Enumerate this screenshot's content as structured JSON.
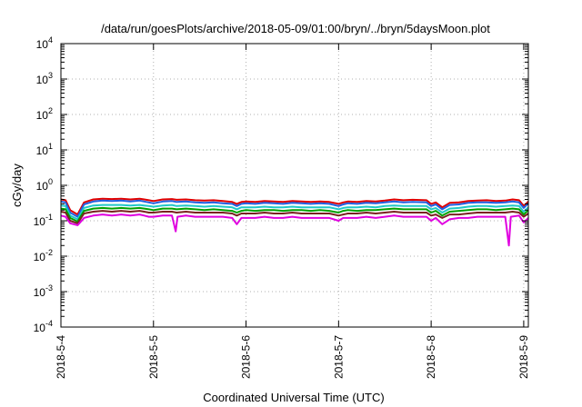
{
  "chart_data": {
    "type": "line",
    "title": "/data/run/goesPlots/archive/2018-05-09/01:00/bryn/../bryn/5daysMoon.plot",
    "xlabel": "Coordinated Universal Time (UTC)",
    "ylabel": "cGy/day",
    "yscale": "log",
    "ylim": [
      0.0001,
      10000
    ],
    "xlim": [
      0,
      5.05
    ],
    "grid": true,
    "x_ticks": [
      {
        "value": 0,
        "label": "2018-5-4"
      },
      {
        "value": 1,
        "label": "2018-5-5"
      },
      {
        "value": 2,
        "label": "2018-5-6"
      },
      {
        "value": 3,
        "label": "2018-5-7"
      },
      {
        "value": 4,
        "label": "2018-5-8"
      },
      {
        "value": 5,
        "label": "2018-5-9"
      }
    ],
    "y_ticks": [
      {
        "value": 0.0001,
        "base": "10",
        "exp": "-4"
      },
      {
        "value": 0.001,
        "base": "10",
        "exp": "-3"
      },
      {
        "value": 0.01,
        "base": "10",
        "exp": "-2"
      },
      {
        "value": 0.1,
        "base": "10",
        "exp": "-1"
      },
      {
        "value": 1,
        "base": "10",
        "exp": "0"
      },
      {
        "value": 10,
        "base": "10",
        "exp": "1"
      },
      {
        "value": 100,
        "base": "10",
        "exp": "2"
      },
      {
        "value": 1000,
        "base": "10",
        "exp": "3"
      },
      {
        "value": 10000,
        "base": "10",
        "exp": "4"
      }
    ],
    "series": [
      {
        "color": "#e00000",
        "x": [
          0,
          0.05,
          0.1,
          0.18,
          0.25,
          0.35,
          0.45,
          0.55,
          0.65,
          0.75,
          0.85,
          0.9,
          0.95,
          1.0,
          1.1,
          1.2,
          1.25,
          1.35,
          1.45,
          1.55,
          1.65,
          1.75,
          1.85,
          1.9,
          1.95,
          2.0,
          2.1,
          2.2,
          2.3,
          2.4,
          2.5,
          2.6,
          2.7,
          2.8,
          2.9,
          3.0,
          3.05,
          3.1,
          3.2,
          3.3,
          3.4,
          3.5,
          3.6,
          3.7,
          3.8,
          3.95,
          4.0,
          4.05,
          4.12,
          4.2,
          4.3,
          4.4,
          4.5,
          4.6,
          4.7,
          4.8,
          4.88,
          4.95,
          5.0,
          5.05
        ],
        "values": [
          0.4,
          0.38,
          0.2,
          0.15,
          0.33,
          0.4,
          0.42,
          0.41,
          0.42,
          0.4,
          0.42,
          0.4,
          0.38,
          0.36,
          0.4,
          0.41,
          0.39,
          0.4,
          0.38,
          0.37,
          0.38,
          0.36,
          0.34,
          0.3,
          0.34,
          0.35,
          0.34,
          0.36,
          0.35,
          0.34,
          0.36,
          0.35,
          0.34,
          0.35,
          0.34,
          0.3,
          0.33,
          0.35,
          0.34,
          0.36,
          0.35,
          0.37,
          0.4,
          0.38,
          0.39,
          0.38,
          0.3,
          0.33,
          0.24,
          0.32,
          0.33,
          0.36,
          0.37,
          0.38,
          0.36,
          0.37,
          0.4,
          0.38,
          0.26,
          0.35
        ]
      },
      {
        "color": "#1f5fe0",
        "x": [
          0,
          0.05,
          0.1,
          0.18,
          0.25,
          0.35,
          0.45,
          0.55,
          0.65,
          0.75,
          0.85,
          0.9,
          0.95,
          1.0,
          1.1,
          1.2,
          1.25,
          1.35,
          1.45,
          1.55,
          1.65,
          1.75,
          1.85,
          1.9,
          1.95,
          2.0,
          2.1,
          2.2,
          2.3,
          2.4,
          2.5,
          2.6,
          2.7,
          2.8,
          2.9,
          3.0,
          3.05,
          3.1,
          3.2,
          3.3,
          3.4,
          3.5,
          3.6,
          3.7,
          3.8,
          3.95,
          4.0,
          4.05,
          4.12,
          4.2,
          4.3,
          4.4,
          4.5,
          4.6,
          4.7,
          4.8,
          4.88,
          4.95,
          5.0,
          5.05
        ],
        "values": [
          0.35,
          0.33,
          0.17,
          0.13,
          0.29,
          0.35,
          0.37,
          0.36,
          0.37,
          0.35,
          0.37,
          0.35,
          0.33,
          0.31,
          0.35,
          0.36,
          0.34,
          0.35,
          0.33,
          0.32,
          0.33,
          0.31,
          0.3,
          0.26,
          0.3,
          0.31,
          0.3,
          0.32,
          0.31,
          0.3,
          0.32,
          0.31,
          0.3,
          0.31,
          0.3,
          0.26,
          0.29,
          0.31,
          0.3,
          0.32,
          0.31,
          0.33,
          0.35,
          0.33,
          0.34,
          0.33,
          0.26,
          0.29,
          0.21,
          0.28,
          0.29,
          0.32,
          0.33,
          0.33,
          0.32,
          0.33,
          0.35,
          0.33,
          0.23,
          0.31
        ]
      },
      {
        "color": "#20c8c8",
        "x": [
          0,
          0.05,
          0.1,
          0.18,
          0.25,
          0.35,
          0.45,
          0.55,
          0.65,
          0.75,
          0.85,
          0.9,
          0.95,
          1.0,
          1.1,
          1.2,
          1.25,
          1.35,
          1.45,
          1.55,
          1.65,
          1.75,
          1.85,
          1.9,
          1.95,
          2.0,
          2.1,
          2.2,
          2.3,
          2.4,
          2.5,
          2.6,
          2.7,
          2.8,
          2.9,
          3.0,
          3.05,
          3.1,
          3.2,
          3.3,
          3.4,
          3.5,
          3.6,
          3.7,
          3.8,
          3.95,
          4.0,
          4.05,
          4.12,
          4.2,
          4.3,
          4.4,
          4.5,
          4.6,
          4.7,
          4.8,
          4.88,
          4.95,
          5.0,
          5.05
        ],
        "values": [
          0.27,
          0.26,
          0.14,
          0.11,
          0.23,
          0.27,
          0.28,
          0.28,
          0.28,
          0.27,
          0.28,
          0.27,
          0.26,
          0.25,
          0.27,
          0.28,
          0.26,
          0.27,
          0.26,
          0.25,
          0.26,
          0.25,
          0.24,
          0.21,
          0.24,
          0.24,
          0.24,
          0.25,
          0.24,
          0.24,
          0.25,
          0.24,
          0.24,
          0.24,
          0.24,
          0.21,
          0.23,
          0.24,
          0.24,
          0.25,
          0.24,
          0.26,
          0.27,
          0.26,
          0.26,
          0.26,
          0.21,
          0.23,
          0.17,
          0.22,
          0.23,
          0.25,
          0.26,
          0.26,
          0.25,
          0.26,
          0.27,
          0.26,
          0.18,
          0.24
        ]
      },
      {
        "color": "#00a000",
        "x": [
          0,
          0.05,
          0.1,
          0.18,
          0.25,
          0.35,
          0.45,
          0.55,
          0.65,
          0.75,
          0.85,
          0.9,
          0.95,
          1.0,
          1.1,
          1.2,
          1.25,
          1.35,
          1.45,
          1.55,
          1.65,
          1.75,
          1.85,
          1.9,
          1.95,
          2.0,
          2.1,
          2.2,
          2.3,
          2.4,
          2.5,
          2.6,
          2.7,
          2.8,
          2.9,
          3.0,
          3.05,
          3.1,
          3.2,
          3.3,
          3.4,
          3.5,
          3.6,
          3.7,
          3.8,
          3.95,
          4.0,
          4.05,
          4.12,
          4.2,
          4.3,
          4.4,
          4.5,
          4.6,
          4.7,
          4.8,
          4.88,
          4.95,
          5.0,
          5.05
        ],
        "values": [
          0.22,
          0.21,
          0.12,
          0.095,
          0.19,
          0.22,
          0.23,
          0.22,
          0.23,
          0.22,
          0.23,
          0.22,
          0.21,
          0.2,
          0.22,
          0.22,
          0.21,
          0.22,
          0.21,
          0.2,
          0.21,
          0.2,
          0.19,
          0.17,
          0.19,
          0.2,
          0.19,
          0.2,
          0.2,
          0.19,
          0.2,
          0.2,
          0.19,
          0.2,
          0.19,
          0.17,
          0.19,
          0.2,
          0.19,
          0.2,
          0.2,
          0.21,
          0.22,
          0.21,
          0.21,
          0.21,
          0.17,
          0.19,
          0.14,
          0.18,
          0.19,
          0.2,
          0.21,
          0.21,
          0.2,
          0.21,
          0.22,
          0.21,
          0.15,
          0.2
        ]
      },
      {
        "color": "#7a2020",
        "x": [
          0,
          0.05,
          0.1,
          0.18,
          0.25,
          0.35,
          0.45,
          0.55,
          0.65,
          0.75,
          0.85,
          0.9,
          0.95,
          1.0,
          1.1,
          1.2,
          1.25,
          1.35,
          1.45,
          1.55,
          1.65,
          1.75,
          1.85,
          1.9,
          1.95,
          2.0,
          2.1,
          2.2,
          2.3,
          2.4,
          2.5,
          2.6,
          2.7,
          2.8,
          2.9,
          3.0,
          3.05,
          3.1,
          3.2,
          3.3,
          3.4,
          3.5,
          3.6,
          3.7,
          3.8,
          3.95,
          4.0,
          4.05,
          4.12,
          4.2,
          4.3,
          4.4,
          4.5,
          4.6,
          4.7,
          4.8,
          4.88,
          4.95,
          5.0,
          5.05
        ],
        "values": [
          0.18,
          0.17,
          0.1,
          0.085,
          0.16,
          0.18,
          0.19,
          0.18,
          0.19,
          0.18,
          0.19,
          0.18,
          0.17,
          0.17,
          0.18,
          0.18,
          0.17,
          0.18,
          0.17,
          0.17,
          0.17,
          0.17,
          0.16,
          0.14,
          0.16,
          0.16,
          0.16,
          0.17,
          0.16,
          0.16,
          0.17,
          0.16,
          0.16,
          0.16,
          0.16,
          0.14,
          0.15,
          0.16,
          0.16,
          0.17,
          0.16,
          0.17,
          0.18,
          0.17,
          0.17,
          0.17,
          0.14,
          0.15,
          0.12,
          0.15,
          0.15,
          0.16,
          0.17,
          0.17,
          0.17,
          0.17,
          0.18,
          0.17,
          0.13,
          0.16
        ]
      },
      {
        "color": "#e000e0",
        "x": [
          0,
          0.05,
          0.1,
          0.18,
          0.25,
          0.35,
          0.45,
          0.55,
          0.65,
          0.75,
          0.85,
          0.9,
          0.95,
          1.0,
          1.1,
          1.2,
          1.24,
          1.26,
          1.35,
          1.45,
          1.55,
          1.65,
          1.75,
          1.85,
          1.9,
          1.95,
          2.0,
          2.1,
          2.2,
          2.3,
          2.4,
          2.5,
          2.6,
          2.7,
          2.8,
          2.9,
          3.0,
          3.05,
          3.1,
          3.2,
          3.3,
          3.4,
          3.5,
          3.6,
          3.7,
          3.8,
          3.95,
          4.0,
          4.05,
          4.12,
          4.2,
          4.3,
          4.4,
          4.5,
          4.6,
          4.7,
          4.8,
          4.84,
          4.86,
          4.95,
          5.0,
          5.05
        ],
        "values": [
          0.14,
          0.13,
          0.085,
          0.075,
          0.12,
          0.14,
          0.15,
          0.14,
          0.15,
          0.14,
          0.15,
          0.14,
          0.13,
          0.13,
          0.14,
          0.14,
          0.05,
          0.13,
          0.14,
          0.13,
          0.13,
          0.13,
          0.13,
          0.12,
          0.08,
          0.12,
          0.12,
          0.12,
          0.13,
          0.12,
          0.12,
          0.13,
          0.12,
          0.12,
          0.12,
          0.12,
          0.1,
          0.12,
          0.12,
          0.12,
          0.13,
          0.12,
          0.13,
          0.14,
          0.13,
          0.13,
          0.13,
          0.1,
          0.12,
          0.08,
          0.11,
          0.12,
          0.12,
          0.13,
          0.13,
          0.13,
          0.13,
          0.02,
          0.13,
          0.14,
          0.09,
          0.12
        ]
      }
    ]
  }
}
